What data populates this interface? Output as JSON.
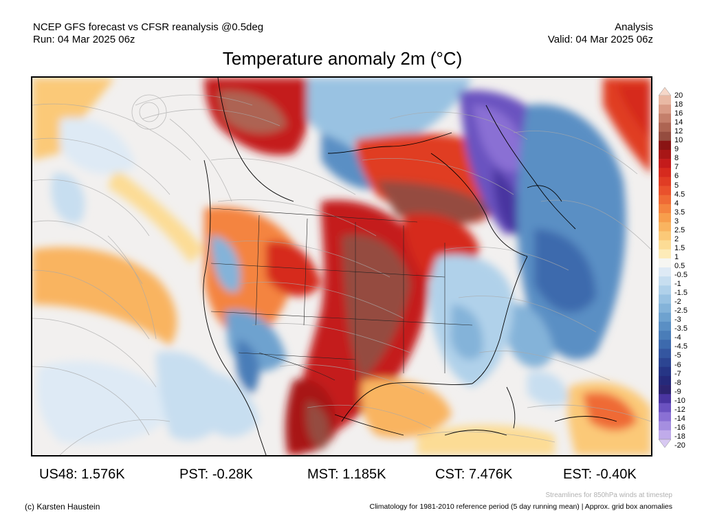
{
  "header": {
    "left_line1": "NCEP GFS forecast vs CFSR reanalysis @0.5deg",
    "left_line2": "Run: 04 Mar 2025 06z",
    "right_line1": "Analysis",
    "right_line2": "Valid: 04 Mar 2025 06z"
  },
  "title": "Temperature anomaly 2m (°C)",
  "colorbar": {
    "labels": [
      "20",
      "18",
      "16",
      "14",
      "12",
      "10",
      "9",
      "8",
      "7",
      "6",
      "5",
      "4.5",
      "4",
      "3.5",
      "3",
      "2.5",
      "2",
      "1.5",
      "1",
      "0.5",
      "-0.5",
      "-1",
      "-1.5",
      "-2",
      "-2.5",
      "-3",
      "-3.5",
      "-4",
      "-4.5",
      "-5",
      "-6",
      "-7",
      "-8",
      "-9",
      "-10",
      "-12",
      "-14",
      "-16",
      "-18",
      "-20"
    ],
    "colors": [
      "#f6d7c8",
      "#e9b9a4",
      "#d99b86",
      "#c47f6b",
      "#ad6452",
      "#954c3f",
      "#8a1414",
      "#a81616",
      "#c41b1b",
      "#d62a1e",
      "#e03c24",
      "#e9512c",
      "#ef6a35",
      "#f4843f",
      "#f79e4c",
      "#f9b460",
      "#fbc978",
      "#fcdc95",
      "#fdebb8",
      "#f6f6f2",
      "#deeaf5",
      "#c7def0",
      "#b0d1ea",
      "#99c2e2",
      "#84b3d9",
      "#6ea2cf",
      "#5a8fc4",
      "#4a7db8",
      "#3d6aad",
      "#3456a0",
      "#2c4592",
      "#263585",
      "#25297a",
      "#2d2470",
      "#4a35a0",
      "#6b52c0",
      "#8a70d4",
      "#a58ee0",
      "#c0abea",
      "#d8c9f2"
    ]
  },
  "regions": [
    {
      "label": "US48:",
      "value": "1.576K"
    },
    {
      "label": "PST:",
      "value": "-0.28K"
    },
    {
      "label": "MST:",
      "value": "1.185K"
    },
    {
      "label": "CST:",
      "value": "7.476K"
    },
    {
      "label": "EST:",
      "value": "-0.40K"
    }
  ],
  "footer": {
    "streamlines_note": "Streamlines for 850hPa winds at timestep",
    "copyright": "(c) Karsten Haustein",
    "climatology_note": "Climatology for 1981-2010 reference period (5 day running mean) | Approx. grid box anomalies"
  }
}
